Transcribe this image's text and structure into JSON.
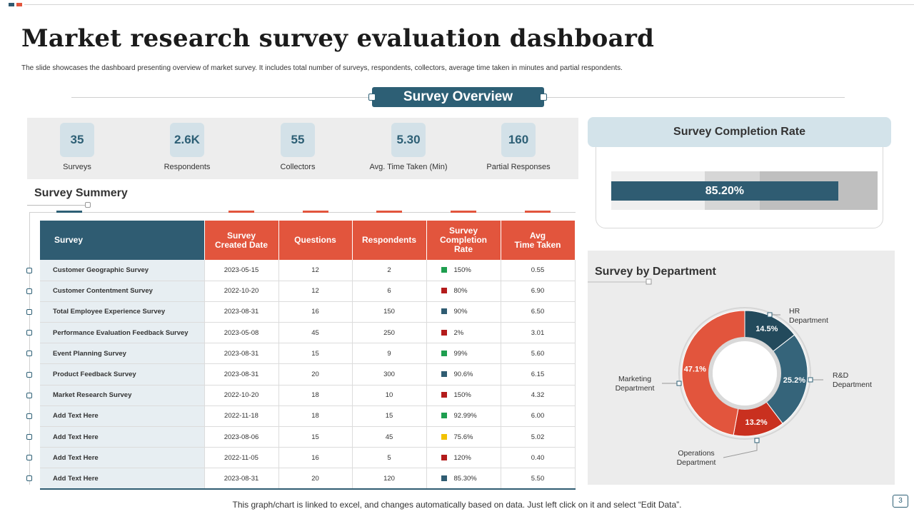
{
  "header": {
    "title": "Market research survey evaluation dashboard",
    "subtitle": "The slide showcases the dashboard presenting overview of market survey. It includes total number of surveys, respondents, collectors, average time taken in minutes and partial respondents."
  },
  "overview": {
    "label": "Survey Overview"
  },
  "kpis": [
    {
      "value": "35",
      "label": "Surveys"
    },
    {
      "value": "2.6K",
      "label": "Respondents"
    },
    {
      "value": "55",
      "label": "Collectors"
    },
    {
      "value": "5.30",
      "label": "Avg. Time Taken (Min)"
    },
    {
      "value": "160",
      "label": "Partial Responses"
    }
  ],
  "summary": {
    "title": "Survey Summery",
    "columns": [
      "Survey",
      "Survey Created Date",
      "Questions",
      "Respondents",
      "Survey Completion Rate",
      "Avg Time Taken"
    ],
    "rows": [
      {
        "survey": "Customer Geographic Survey",
        "date": "2023-05-15",
        "questions": "12",
        "respondents": "2",
        "rate": "150%",
        "status": "green",
        "time": "0.55"
      },
      {
        "survey": "Customer Contentment Survey",
        "date": "2022-10-20",
        "questions": "12",
        "respondents": "6",
        "rate": "80%",
        "status": "red",
        "time": "6.90"
      },
      {
        "survey": "Total Employee Experience Survey",
        "date": "2023-08-31",
        "questions": "16",
        "respondents": "150",
        "rate": "90%",
        "status": "teal",
        "time": "6.50"
      },
      {
        "survey": "Performance Evaluation Feedback Survey",
        "date": "2023-05-08",
        "questions": "45",
        "respondents": "250",
        "rate": "2%",
        "status": "red",
        "time": "3.01"
      },
      {
        "survey": "Event Planning Survey",
        "date": "2023-08-31",
        "questions": "15",
        "respondents": "9",
        "rate": "99%",
        "status": "green",
        "time": "5.60"
      },
      {
        "survey": "Product Feedback Survey",
        "date": "2023-08-31",
        "questions": "20",
        "respondents": "300",
        "rate": "90.6%",
        "status": "teal",
        "time": "6.15"
      },
      {
        "survey": "Market Research Survey",
        "date": "2022-10-20",
        "questions": "18",
        "respondents": "10",
        "rate": "150%",
        "status": "red",
        "time": "4.32"
      },
      {
        "survey": "Add Text Here",
        "date": "2022-11-18",
        "questions": "18",
        "respondents": "15",
        "rate": "92.99%",
        "status": "green",
        "time": "6.00"
      },
      {
        "survey": "Add Text Here",
        "date": "2023-08-06",
        "questions": "15",
        "respondents": "45",
        "rate": "75.6%",
        "status": "yellow",
        "time": "5.02"
      },
      {
        "survey": "Add Text Here",
        "date": "2022-11-05",
        "questions": "16",
        "respondents": "5",
        "rate": "120%",
        "status": "red",
        "time": "0.40"
      },
      {
        "survey": "Add Text Here",
        "date": "2023-08-31",
        "questions": "20",
        "respondents": "120",
        "rate": "85.30%",
        "status": "teal",
        "time": "5.50"
      }
    ]
  },
  "status_colors": {
    "green": "#1e9e4f",
    "red": "#b31b1b",
    "teal": "#2f5c72",
    "yellow": "#f2c200"
  },
  "completion": {
    "title": "Survey Completion Rate",
    "value_label": "85.20%",
    "value": 85.2
  },
  "footer": {
    "note": "This graph/chart is linked to excel,  and changes automatically based on data. Just left click on it and select “Edit Data”.",
    "page": "3"
  },
  "chart_data": {
    "type": "pie",
    "variant": "donut",
    "title": "Survey by Department",
    "categories": [
      "HR Department",
      "R&D Department",
      "Operations Department",
      "Marketing Department"
    ],
    "values": [
      14.5,
      25.2,
      13.2,
      47.1
    ],
    "value_labels": [
      "14.5%",
      "25.2%",
      "13.2%",
      "47.1%"
    ],
    "label_lines": [
      [
        "HR",
        "Department"
      ],
      [
        "R&D",
        "Department"
      ],
      [
        "Operations",
        "Department"
      ],
      [
        "Marketing",
        "Department"
      ]
    ],
    "colors": [
      "#234a5c",
      "#35647a",
      "#c9301f",
      "#e2553d"
    ]
  }
}
